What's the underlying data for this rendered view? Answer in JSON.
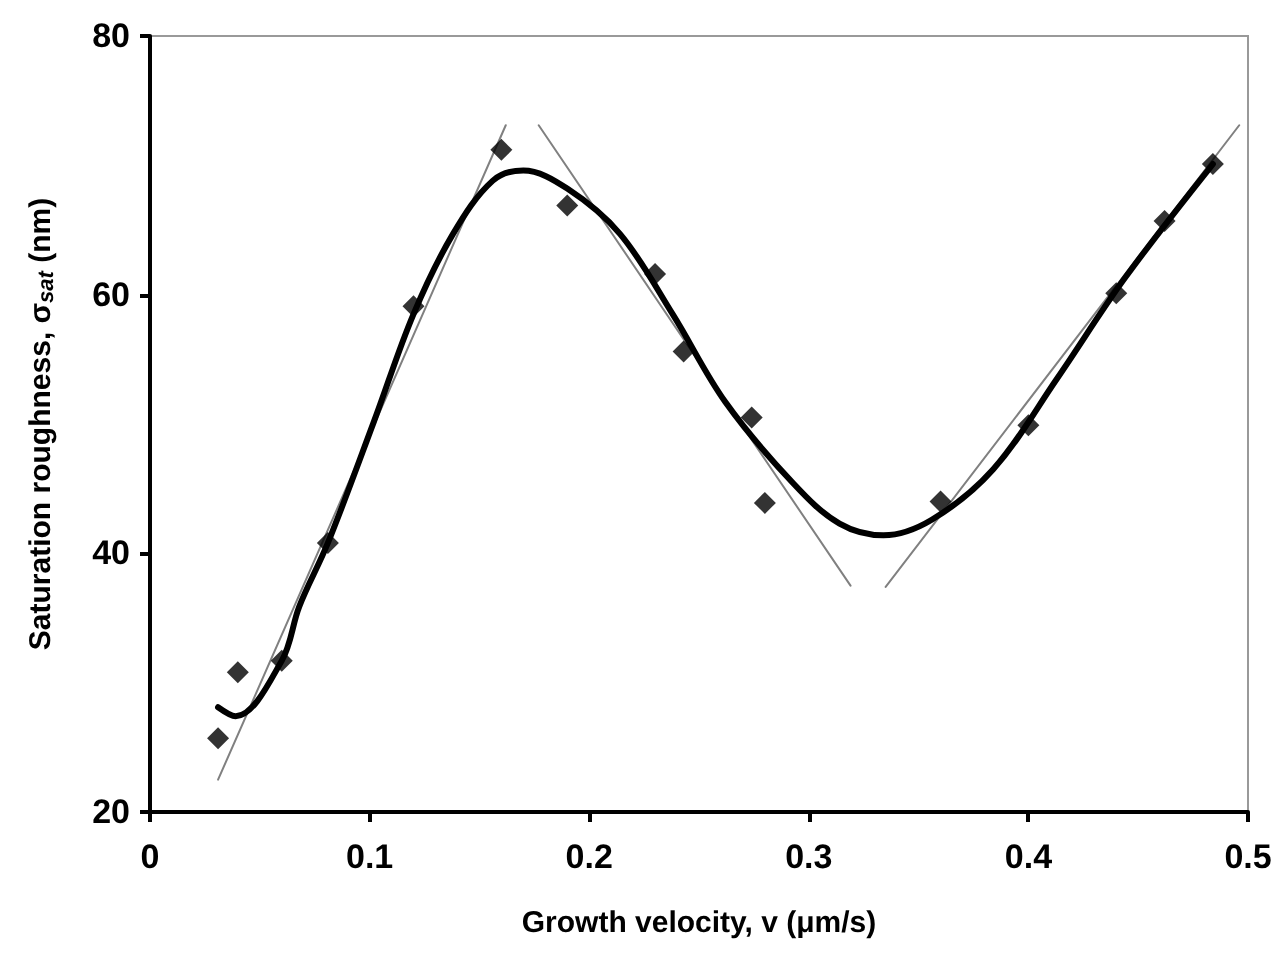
{
  "chart_data": {
    "type": "scatter",
    "xlabel": "Growth velocity, v (μm/s)",
    "ylabel": "Saturation roughness, σ$_{sat}$ (nm)",
    "xlim": [
      0,
      0.5
    ],
    "xticks": [
      0,
      0.1,
      0.2,
      0.3,
      0.4,
      0.5
    ],
    "ylim": [
      20,
      80
    ],
    "yticks": [
      20,
      40,
      60,
      80
    ],
    "grid": false,
    "series": [
      {
        "type": "line",
        "color": "#808080",
        "marker": "none",
        "line_style": "solid",
        "x": [
          0.031,
          0.162
        ],
        "values": [
          22.5,
          73.1
        ]
      },
      {
        "type": "line",
        "color": "#808080",
        "marker": "none",
        "line_style": "solid",
        "x": [
          0.177,
          0.319
        ],
        "values": [
          73.1,
          37.5
        ]
      },
      {
        "type": "line",
        "color": "#808080",
        "marker": "none",
        "line_style": "solid",
        "x": [
          0.335,
          0.496
        ],
        "values": [
          37.4,
          73.1
        ]
      },
      {
        "type": "line",
        "color": "#000000",
        "marker": "none",
        "line_style": "solid",
        "x": [
          0.031,
          0.039,
          0.06,
          0.068,
          0.081,
          0.102,
          0.12,
          0.138,
          0.156,
          0.17,
          0.19,
          0.214,
          0.238,
          0.262,
          0.293,
          0.314,
          0.334,
          0.356,
          0.384,
          0.413,
          0.444,
          0.484
        ],
        "values": [
          28.1,
          27.4,
          31.7,
          35.9,
          40.8,
          50.2,
          58.5,
          64.7,
          68.8,
          69.6,
          68.2,
          64.7,
          58.5,
          51.7,
          45.4,
          42.3,
          41.4,
          42.6,
          46.5,
          53.5,
          61.3,
          70.1
        ]
      },
      {
        "color": "#000000",
        "marker": "diamond",
        "x": [
          0.031,
          0.04,
          0.06,
          0.081,
          0.12,
          0.16,
          0.19,
          0.23,
          0.243,
          0.274,
          0.28,
          0.36,
          0.4,
          0.44,
          0.462,
          0.484
        ],
        "values": [
          25.7,
          30.8,
          31.7,
          40.8,
          59.1,
          71.2,
          66.9,
          61.6,
          55.6,
          50.5,
          43.9,
          44.0,
          49.9,
          60.1,
          65.7,
          70.1
        ]
      }
    ]
  }
}
